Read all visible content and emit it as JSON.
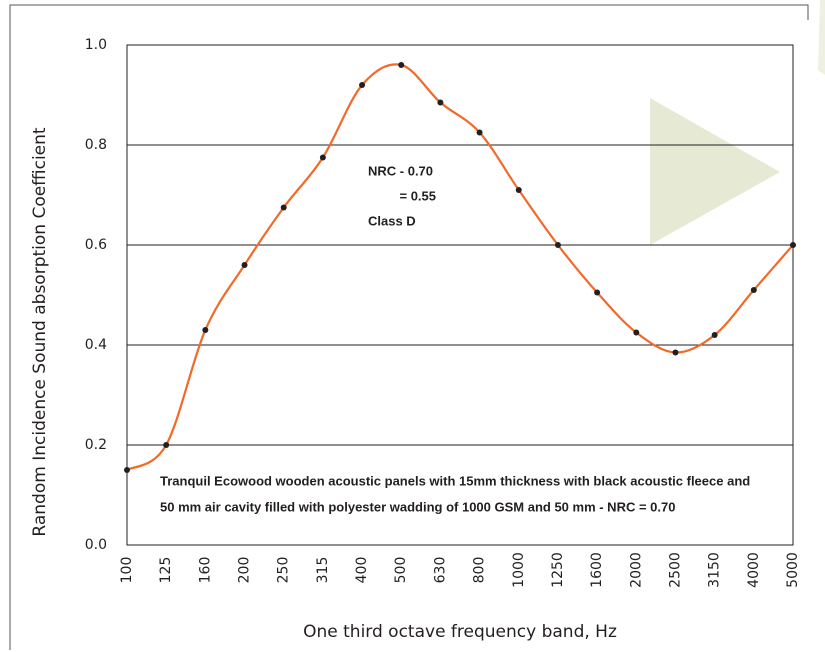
{
  "chart_data": {
    "type": "line",
    "categories": [
      "100",
      "125",
      "160",
      "200",
      "250",
      "315",
      "400",
      "500",
      "630",
      "800",
      "1000",
      "1250",
      "1600",
      "2000",
      "2500",
      "3150",
      "4000",
      "5000"
    ],
    "series": [
      {
        "color": "#f26a2a",
        "values": [
          0.15,
          0.2,
          0.43,
          0.56,
          0.675,
          0.775,
          0.92,
          0.96,
          0.885,
          0.825,
          0.71,
          0.6,
          0.505,
          0.425,
          0.385,
          0.42,
          0.51,
          0.6
        ]
      }
    ],
    "ylim": [
      0,
      1
    ],
    "yticks": [
      {
        "value": 0,
        "label": "0.0"
      },
      0.2,
      0.4,
      0.6,
      0.8,
      {
        "value": 1,
        "label": "1.0"
      }
    ],
    "grid": true,
    "xlabel": "One third octave frequency band, Hz",
    "ylabel": "Random Incidence Sound absorption Coefficient",
    "annotations": [
      "NRC - 0.70",
      "= 0.55",
      "Class D"
    ],
    "note": [
      "Tranquil Ecowood wooden acoustic panels with 15mm thickness with black acoustic fleece and",
      "50 mm air cavity filled with polyester wadding of 1000 GSM and 50 mm - NRC = 0.70"
    ]
  }
}
